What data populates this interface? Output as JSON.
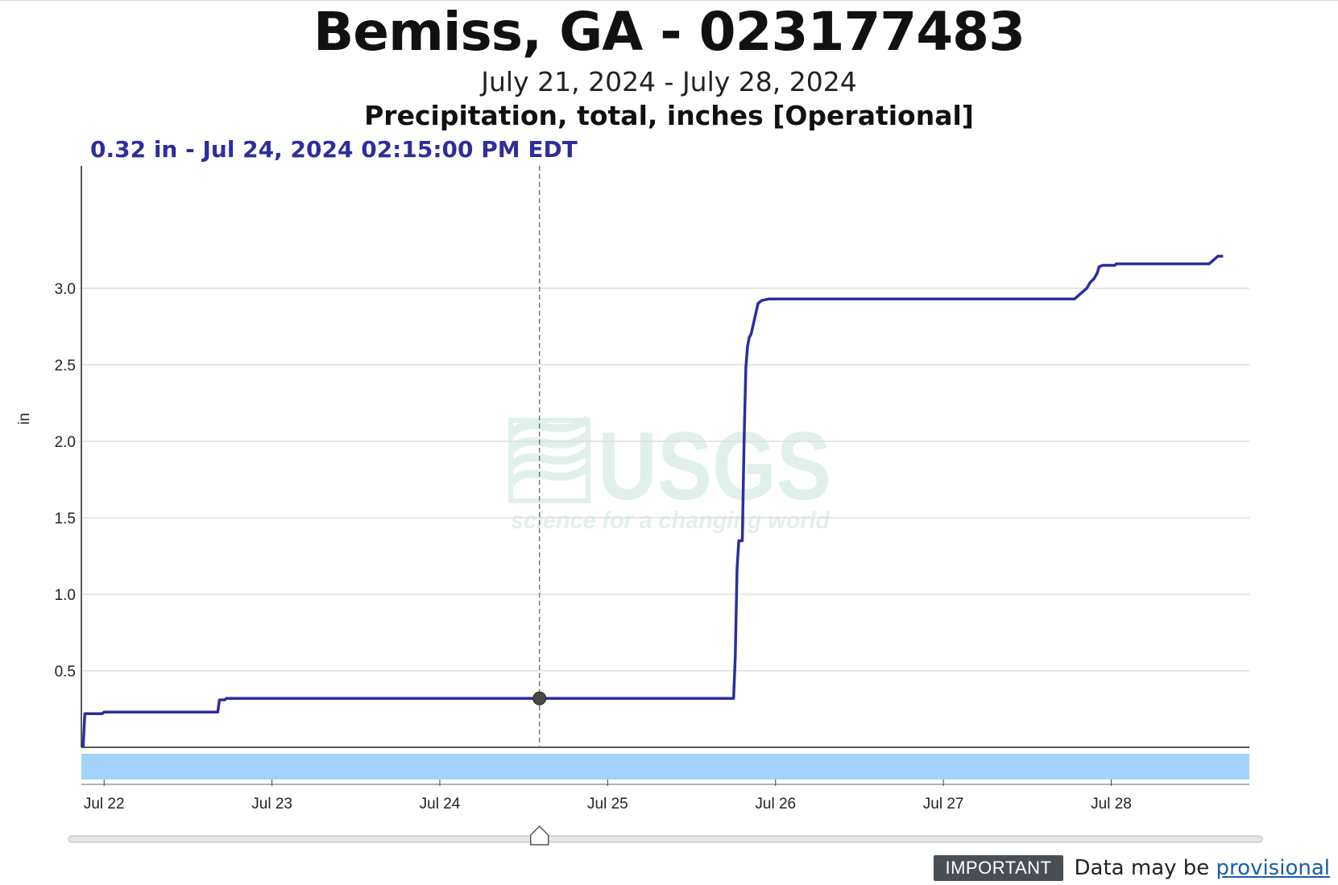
{
  "chart_data": {
    "type": "line",
    "title": "Bemiss, GA - 023177483",
    "subtitle": "July 21, 2024 - July 28, 2024",
    "parameter": "Precipitation, total, inches [Operational]",
    "ylabel": "in",
    "xlabel": "",
    "ylim": [
      0,
      3.8
    ],
    "xlim": [
      "2024-07-21T20:45",
      "2024-07-28T19:45"
    ],
    "y_ticks": [
      "0.5",
      "1.0",
      "1.5",
      "2.0",
      "2.5",
      "3.0"
    ],
    "x_ticks": [
      "Jul 22",
      "Jul 23",
      "Jul 24",
      "Jul 25",
      "Jul 26",
      "Jul 27",
      "Jul 28"
    ],
    "grid": true,
    "series": [
      {
        "color": "#2d2e9c",
        "points": [
          [
            "2024-07-21T21:00",
            0.0
          ],
          [
            "2024-07-21T21:15",
            0.22
          ],
          [
            "2024-07-21T23:45",
            0.22
          ],
          [
            "2024-07-22T00:00",
            0.23
          ],
          [
            "2024-07-22T16:15",
            0.23
          ],
          [
            "2024-07-22T16:30",
            0.31
          ],
          [
            "2024-07-22T17:15",
            0.31
          ],
          [
            "2024-07-22T17:30",
            0.32
          ],
          [
            "2024-07-25T18:00",
            0.32
          ],
          [
            "2024-07-25T18:15",
            0.6
          ],
          [
            "2024-07-25T18:30",
            1.17
          ],
          [
            "2024-07-25T18:45",
            1.35
          ],
          [
            "2024-07-25T19:15",
            1.35
          ],
          [
            "2024-07-25T19:30",
            2.0
          ],
          [
            "2024-07-25T19:45",
            2.48
          ],
          [
            "2024-07-25T20:00",
            2.62
          ],
          [
            "2024-07-25T20:15",
            2.68
          ],
          [
            "2024-07-25T20:30",
            2.7
          ],
          [
            "2024-07-25T21:00",
            2.8
          ],
          [
            "2024-07-25T21:30",
            2.9
          ],
          [
            "2024-07-25T22:00",
            2.92
          ],
          [
            "2024-07-25T23:00",
            2.93
          ],
          [
            "2024-07-27T18:45",
            2.93
          ],
          [
            "2024-07-27T19:30",
            2.96
          ],
          [
            "2024-07-27T20:30",
            3.0
          ],
          [
            "2024-07-27T21:00",
            3.04
          ],
          [
            "2024-07-27T21:30",
            3.06
          ],
          [
            "2024-07-27T22:00",
            3.1
          ],
          [
            "2024-07-27T22:15",
            3.14
          ],
          [
            "2024-07-27T22:45",
            3.15
          ],
          [
            "2024-07-28T00:30",
            3.15
          ],
          [
            "2024-07-28T00:45",
            3.16
          ],
          [
            "2024-07-28T14:00",
            3.16
          ],
          [
            "2024-07-28T14:45",
            3.19
          ],
          [
            "2024-07-28T15:15",
            3.21
          ],
          [
            "2024-07-28T16:00",
            3.21
          ]
        ]
      }
    ],
    "cursor": {
      "x": "2024-07-24T14:15",
      "y": 0.32
    },
    "readout": "0.32 in - Jul 24, 2024 02:15:00 PM EDT"
  },
  "watermark": {
    "logo_text": "USGS",
    "tagline": "science for a changing world"
  },
  "footer": {
    "badge": "IMPORTANT",
    "note": "Data may be ",
    "link": "provisional"
  }
}
